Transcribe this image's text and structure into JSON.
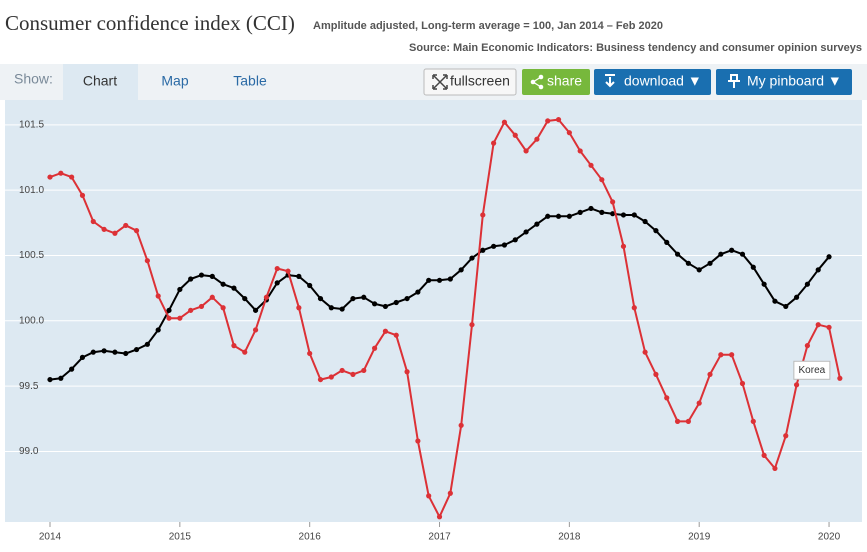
{
  "header": {
    "title": "Consumer confidence index (CCI)",
    "subtitle": "Amplitude adjusted, Long-term average = 100, Jan 2014 – Feb 2020",
    "source": "Source: Main Economic Indicators: Business tendency and consumer opinion surveys"
  },
  "toolbar": {
    "show": "Show:",
    "tabs": [
      "Chart",
      "Map",
      "Table"
    ],
    "buttons": [
      "fullscreen",
      "share",
      "download ▼",
      "My pinboard ▼"
    ]
  },
  "chart_data": {
    "type": "line",
    "categories": [
      "2014",
      null,
      null,
      null,
      null,
      null,
      null,
      null,
      null,
      null,
      null,
      null,
      "2015",
      null,
      null,
      null,
      null,
      null,
      null,
      null,
      null,
      null,
      null,
      null,
      "2016",
      null,
      null,
      null,
      null,
      null,
      null,
      null,
      null,
      null,
      null,
      null,
      "2017",
      null,
      null,
      null,
      null,
      null,
      null,
      null,
      null,
      null,
      null,
      null,
      "2018",
      null,
      null,
      null,
      null,
      null,
      null,
      null,
      null,
      null,
      null,
      null,
      "2019",
      null,
      null,
      null,
      null,
      null,
      null,
      null,
      null,
      null,
      null,
      null,
      "2020",
      null
    ],
    "series": [
      {
        "color": "#000000",
        "values": [
          99.55,
          99.56,
          99.63,
          99.72,
          99.76,
          99.77,
          99.76,
          99.75,
          99.78,
          99.82,
          99.93,
          100.08,
          100.24,
          100.32,
          100.35,
          100.34,
          100.28,
          100.25,
          100.17,
          100.08,
          100.16,
          100.29,
          100.35,
          100.34,
          100.27,
          100.17,
          100.1,
          100.09,
          100.17,
          100.18,
          100.13,
          100.11,
          100.14,
          100.17,
          100.22,
          100.31,
          100.31,
          100.32,
          100.39,
          100.48,
          100.54,
          100.57,
          100.58,
          100.62,
          100.68,
          100.74,
          100.8,
          100.8,
          100.8,
          100.83,
          100.86,
          100.83,
          100.82,
          100.81,
          100.81,
          100.76,
          100.69,
          100.6,
          100.51,
          100.44,
          100.39,
          100.44,
          100.51,
          100.54,
          100.51,
          100.41,
          100.28,
          100.15,
          100.11,
          100.18,
          100.28,
          100.39,
          100.49,
          null
        ]
      },
      {
        "name": "Korea",
        "color": "#dc3136",
        "values": [
          101.1,
          101.13,
          101.1,
          100.96,
          100.76,
          100.7,
          100.67,
          100.73,
          100.69,
          100.46,
          100.19,
          100.02,
          100.02,
          100.08,
          100.11,
          100.18,
          100.1,
          99.81,
          99.76,
          99.93,
          100.18,
          100.4,
          100.38,
          100.1,
          99.75,
          99.55,
          99.57,
          99.62,
          99.59,
          99.62,
          99.79,
          99.92,
          99.89,
          99.61,
          99.08,
          98.66,
          98.5,
          98.68,
          99.2,
          99.97,
          100.81,
          101.36,
          101.52,
          101.42,
          101.3,
          101.39,
          101.53,
          101.54,
          101.44,
          101.3,
          101.19,
          101.08,
          100.91,
          100.57,
          100.1,
          99.76,
          99.59,
          99.41,
          99.23,
          99.23,
          99.37,
          99.59,
          99.74,
          99.74,
          99.52,
          99.23,
          98.97,
          98.87,
          99.12,
          99.51,
          99.81,
          99.97,
          99.95,
          99.56
        ]
      }
    ],
    "ylim": [
      98.46,
      101.69
    ],
    "yticks": [
      {
        "value": 99,
        "label": "99.0"
      },
      99.5,
      {
        "value": 100,
        "label": "100.0"
      },
      100.5,
      {
        "value": 101,
        "label": "101.0"
      },
      101.5
    ],
    "grid": true
  }
}
